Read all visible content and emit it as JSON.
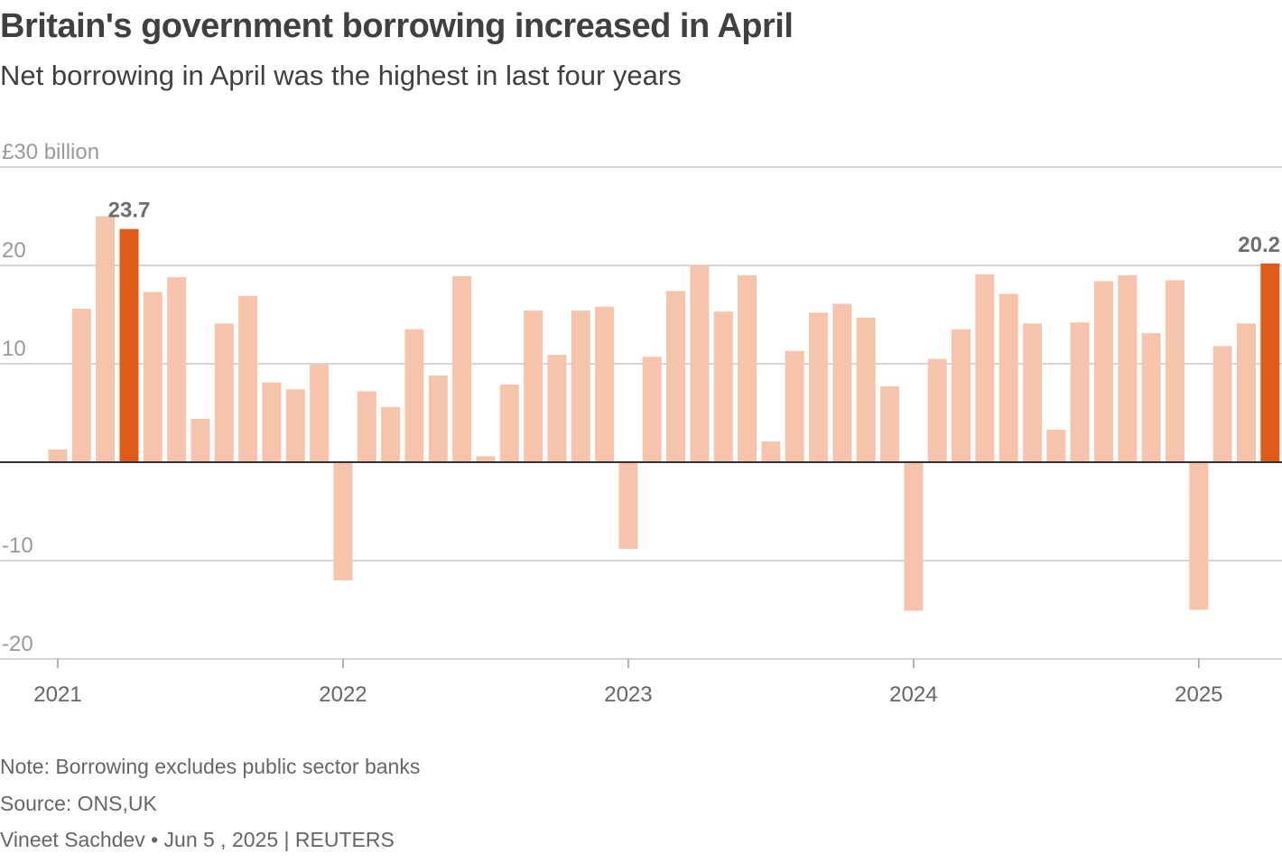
{
  "header": {
    "title": "Britain's government borrowing increased in April",
    "subtitle": "Net borrowing in April was the highest in last four years"
  },
  "footer": {
    "note": "Note: Borrowing excludes public sector banks",
    "source": "Source: ONS,UK",
    "byline": "Vineet Sachdev • Jun 5 , 2025 | REUTERS"
  },
  "colors": {
    "bar": "#f5c4aa",
    "highlight": "#e05a1a",
    "grid": "#c8c8c8",
    "zero_line": "#333333",
    "tick_text": "#9a9a9a",
    "axis_text": "#666666",
    "label_text": "#6e6e6e"
  },
  "chart_data": {
    "type": "bar",
    "unit_label": "£30 billion",
    "ylim": [
      -20,
      30
    ],
    "yticks": [
      {
        "value": 30,
        "label": "£30 billion"
      },
      {
        "value": 20,
        "label": "20"
      },
      {
        "value": 10,
        "label": "10"
      },
      {
        "value": 0,
        "label": ""
      },
      {
        "value": -10,
        "label": "-10"
      },
      {
        "value": -20,
        "label": "-20"
      }
    ],
    "xticks": [
      {
        "label": "2021",
        "month_index": 0
      },
      {
        "label": "2022",
        "month_index": 12
      },
      {
        "label": "2023",
        "month_index": 24
      },
      {
        "label": "2024",
        "month_index": 36
      },
      {
        "label": "2025",
        "month_index": 48
      }
    ],
    "grid": true,
    "months": [
      "Jan 2021",
      "Feb 2021",
      "Mar 2021",
      "Apr 2021",
      "May 2021",
      "Jun 2021",
      "Jul 2021",
      "Aug 2021",
      "Sep 2021",
      "Oct 2021",
      "Nov 2021",
      "Dec 2021",
      "Jan 2022",
      "Feb 2022",
      "Mar 2022",
      "Apr 2022",
      "May 2022",
      "Jun 2022",
      "Jul 2022",
      "Aug 2022",
      "Sep 2022",
      "Oct 2022",
      "Nov 2022",
      "Dec 2022",
      "Jan 2023",
      "Feb 2023",
      "Mar 2023",
      "Apr 2023",
      "May 2023",
      "Jun 2023",
      "Jul 2023",
      "Aug 2023",
      "Sep 2023",
      "Oct 2023",
      "Nov 2023",
      "Dec 2023",
      "Jan 2024",
      "Feb 2024",
      "Mar 2024",
      "Apr 2024",
      "May 2024",
      "Jun 2024",
      "Jul 2024",
      "Aug 2024",
      "Sep 2024",
      "Oct 2024",
      "Nov 2024",
      "Dec 2024",
      "Jan 2025",
      "Feb 2025",
      "Mar 2025",
      "Apr 2025"
    ],
    "values": [
      1.3,
      15.6,
      25.0,
      23.7,
      17.3,
      18.8,
      4.4,
      14.1,
      16.9,
      8.1,
      7.4,
      9.9,
      -12.0,
      7.2,
      5.6,
      13.5,
      8.8,
      18.9,
      0.6,
      7.9,
      15.4,
      10.9,
      15.4,
      15.8,
      -8.8,
      10.7,
      17.4,
      20.0,
      15.3,
      19.0,
      2.1,
      11.3,
      15.2,
      16.1,
      14.7,
      7.7,
      -15.1,
      10.5,
      13.5,
      19.1,
      17.1,
      14.1,
      3.3,
      14.2,
      18.4,
      19.0,
      13.1,
      18.5,
      -15.0,
      11.8,
      14.1,
      20.2
    ],
    "highlighted_months": [
      "Apr 2021",
      "Apr 2025"
    ],
    "data_labels": [
      {
        "month": "Apr 2021",
        "label": "23.7"
      },
      {
        "month": "Apr 2025",
        "label": "20.2"
      }
    ]
  }
}
